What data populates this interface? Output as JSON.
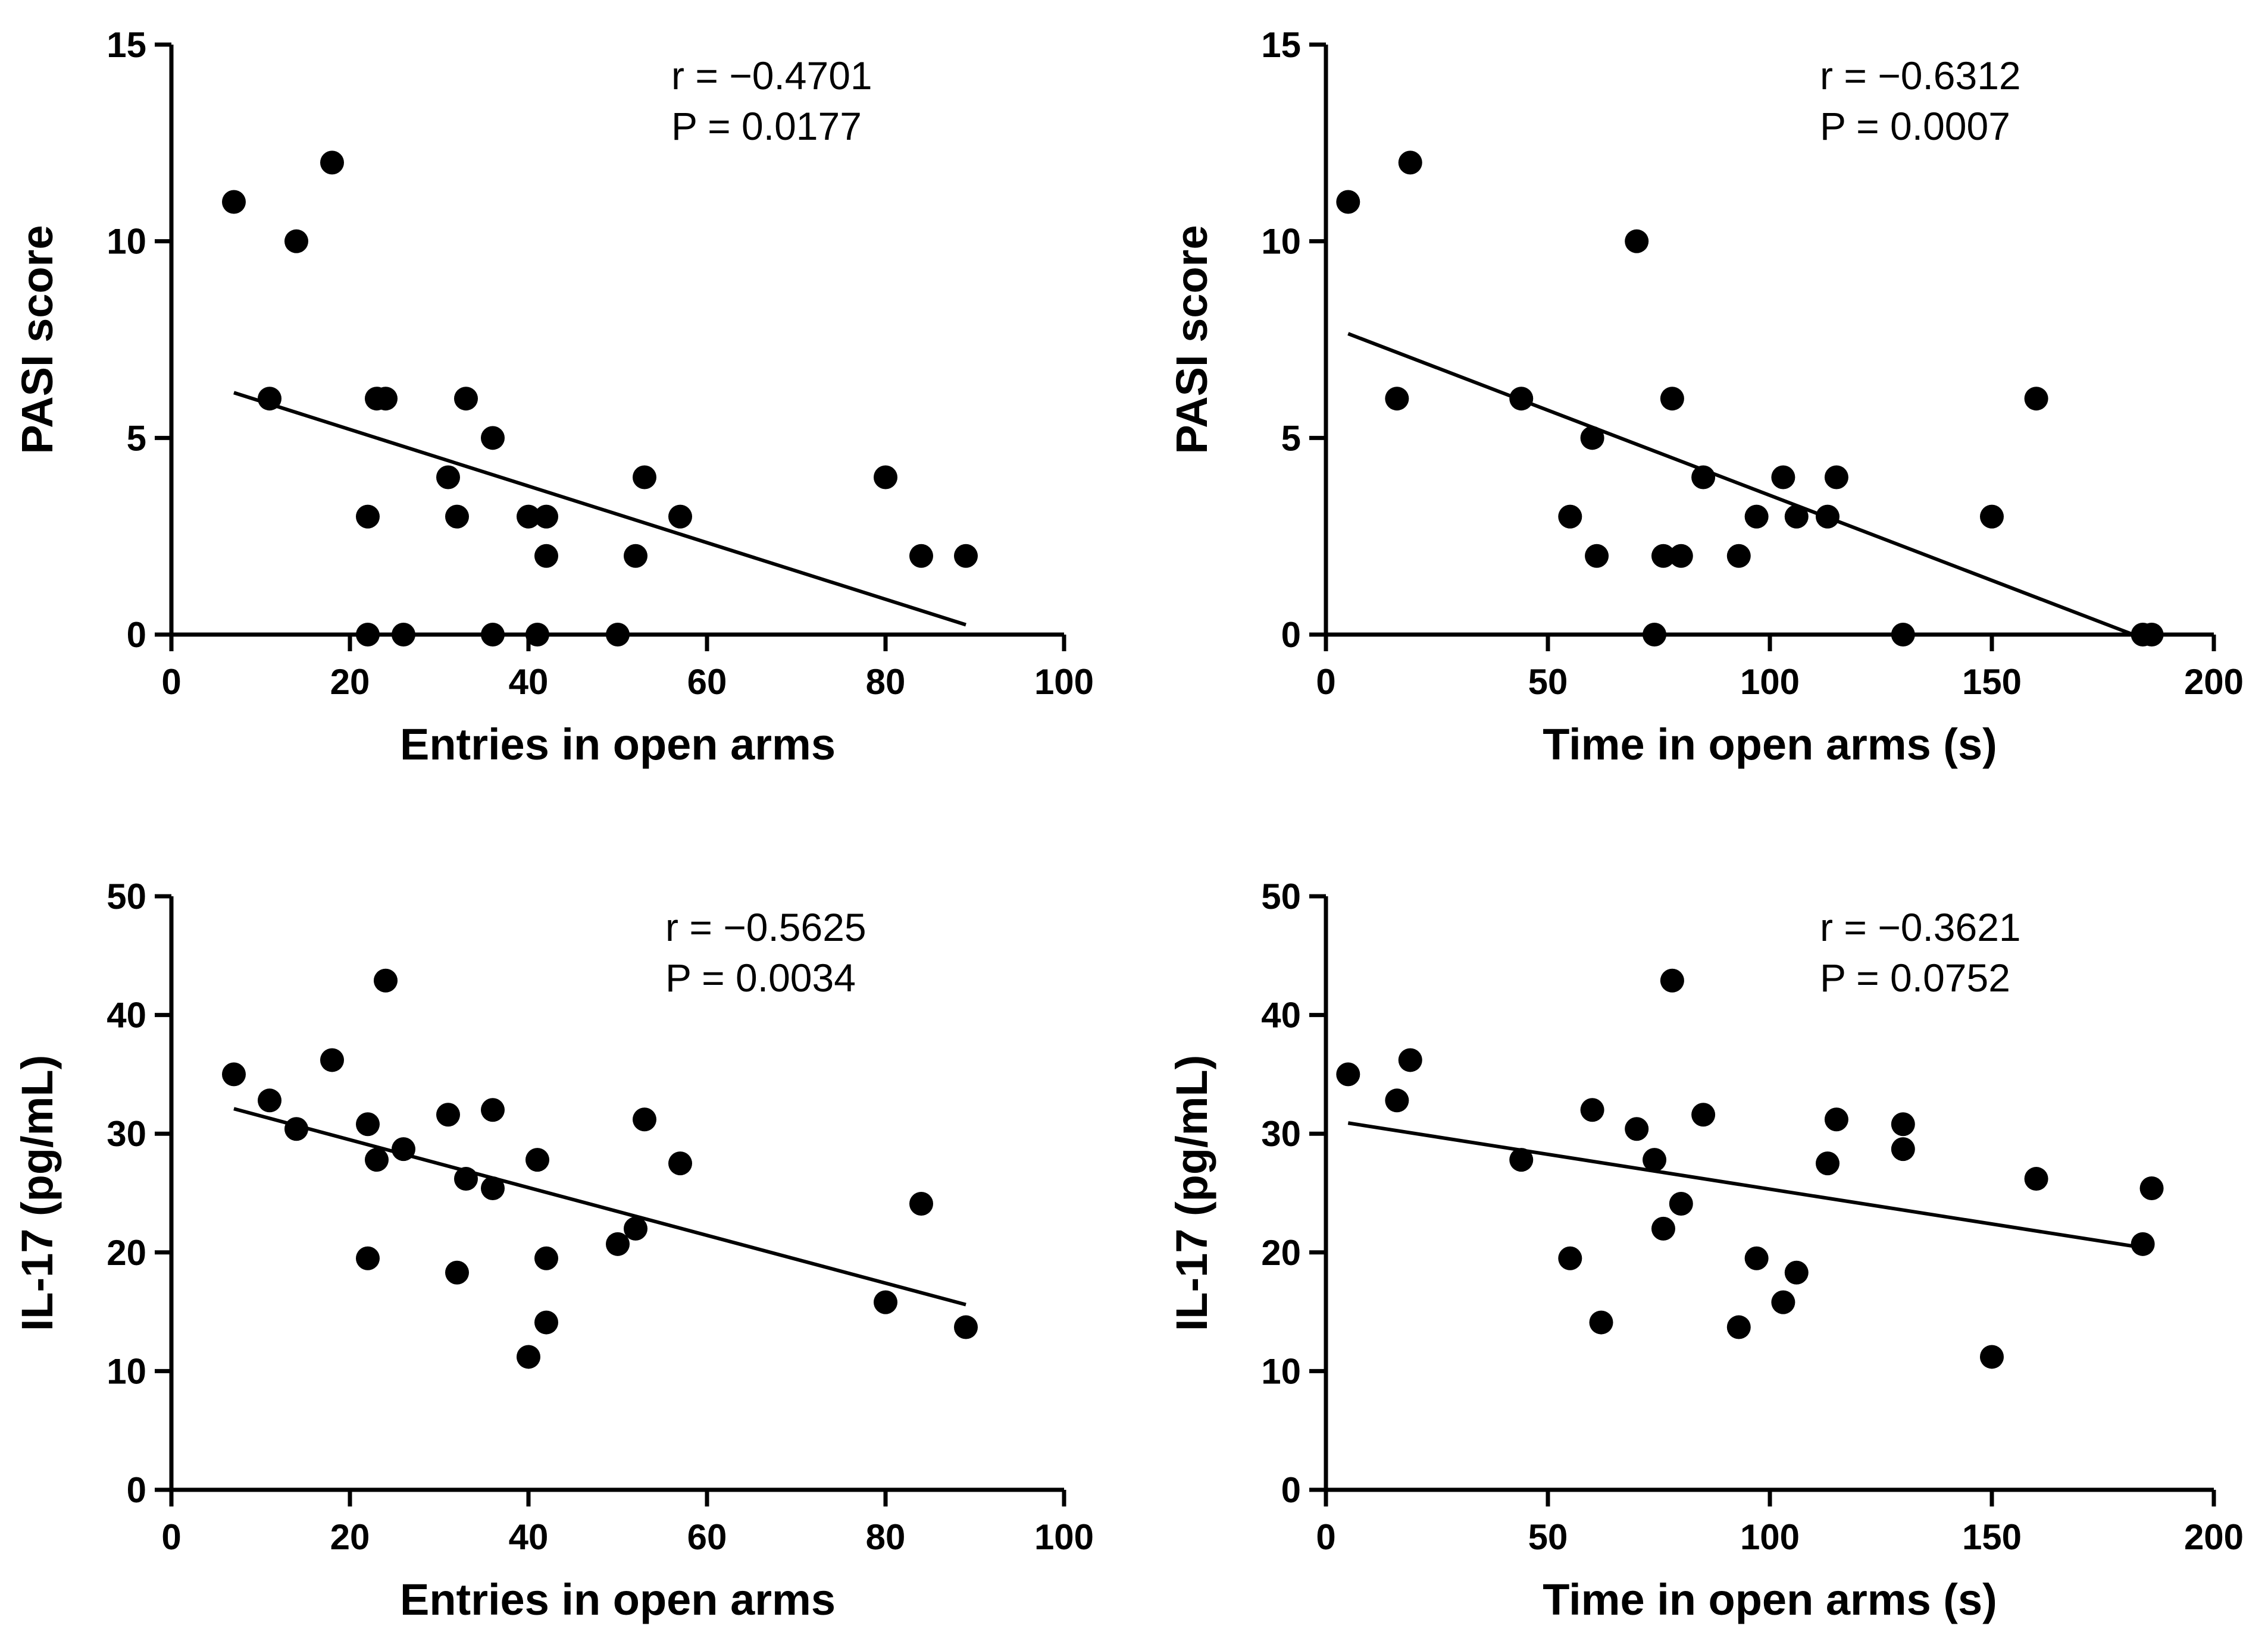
{
  "chart_data": [
    {
      "type": "scatter",
      "panel": "top-left",
      "xlabel": "Entries in open arms",
      "ylabel": "PASI score",
      "xlim": [
        0,
        100
      ],
      "ylim": [
        0,
        15
      ],
      "xticks": [
        0,
        20,
        40,
        60,
        80,
        100
      ],
      "yticks": [
        0,
        5,
        10,
        15
      ],
      "annotations": {
        "r": "r = −0.4701",
        "p": "P = 0.0177"
      },
      "points": [
        [
          7,
          11
        ],
        [
          11,
          6
        ],
        [
          14,
          10
        ],
        [
          18,
          12
        ],
        [
          22,
          3
        ],
        [
          22,
          0
        ],
        [
          23,
          6
        ],
        [
          24,
          6
        ],
        [
          26,
          0
        ],
        [
          31,
          4
        ],
        [
          32,
          3
        ],
        [
          33,
          6
        ],
        [
          36,
          5
        ],
        [
          36,
          0
        ],
        [
          40,
          3
        ],
        [
          41,
          0
        ],
        [
          42,
          3
        ],
        [
          42,
          2
        ],
        [
          50,
          0
        ],
        [
          52,
          2
        ],
        [
          53,
          4
        ],
        [
          57,
          3
        ],
        [
          80,
          4
        ],
        [
          84,
          2
        ],
        [
          89,
          2
        ]
      ],
      "fit": [
        [
          7,
          6.15
        ],
        [
          89,
          0.25
        ]
      ]
    },
    {
      "type": "scatter",
      "panel": "top-right",
      "xlabel": "Time in open arms (s)",
      "ylabel": "PASI score",
      "xlim": [
        0,
        200
      ],
      "ylim": [
        0,
        15
      ],
      "xticks": [
        0,
        50,
        100,
        150,
        200
      ],
      "yticks": [
        0,
        5,
        10,
        15
      ],
      "annotations": {
        "r": "r = −0.6312",
        "p": "P = 0.0007"
      },
      "points": [
        [
          5,
          11
        ],
        [
          16,
          6
        ],
        [
          19,
          12
        ],
        [
          44,
          6
        ],
        [
          55,
          3
        ],
        [
          60,
          5
        ],
        [
          61,
          2
        ],
        [
          70,
          10
        ],
        [
          74,
          0
        ],
        [
          76,
          2
        ],
        [
          78,
          6
        ],
        [
          80,
          2
        ],
        [
          85,
          4
        ],
        [
          93,
          2
        ],
        [
          97,
          3
        ],
        [
          103,
          4
        ],
        [
          106,
          3
        ],
        [
          113,
          3
        ],
        [
          115,
          4
        ],
        [
          130,
          0
        ],
        [
          150,
          3
        ],
        [
          160,
          6
        ],
        [
          184,
          0
        ],
        [
          186,
          0
        ]
      ],
      "fit": [
        [
          5,
          7.65
        ],
        [
          183,
          -0.05
        ]
      ]
    },
    {
      "type": "scatter",
      "panel": "bottom-left",
      "xlabel": "Entries in open arms",
      "ylabel": "IL-17 (pg/mL)",
      "xlim": [
        0,
        100
      ],
      "ylim": [
        0,
        50
      ],
      "xticks": [
        0,
        20,
        40,
        60,
        80,
        100
      ],
      "yticks": [
        0,
        10,
        20,
        30,
        40,
        50
      ],
      "annotations": {
        "r": "r = −0.5625",
        "p": "P = 0.0034"
      },
      "points": [
        [
          7,
          35
        ],
        [
          11,
          32.8
        ],
        [
          14,
          30.4
        ],
        [
          18,
          36.2
        ],
        [
          22,
          30.8
        ],
        [
          22,
          19.5
        ],
        [
          23,
          27.8
        ],
        [
          24,
          42.9
        ],
        [
          26,
          28.7
        ],
        [
          31,
          31.6
        ],
        [
          32,
          18.3
        ],
        [
          33,
          26.2
        ],
        [
          36,
          32
        ],
        [
          36,
          25.4
        ],
        [
          40,
          11.2
        ],
        [
          41,
          27.8
        ],
        [
          42,
          19.5
        ],
        [
          42,
          14.1
        ],
        [
          50,
          20.7
        ],
        [
          52,
          22
        ],
        [
          53,
          31.2
        ],
        [
          57,
          27.5
        ],
        [
          80,
          15.8
        ],
        [
          84,
          24.1
        ],
        [
          89,
          13.7
        ]
      ],
      "fit": [
        [
          7,
          32.1
        ],
        [
          89,
          15.6
        ]
      ]
    },
    {
      "type": "scatter",
      "panel": "bottom-right",
      "xlabel": "Time in open arms (s)",
      "ylabel": "IL-17 (pg/mL)",
      "xlim": [
        0,
        200
      ],
      "ylim": [
        0,
        50
      ],
      "xticks": [
        0,
        50,
        100,
        150,
        200
      ],
      "yticks": [
        0,
        10,
        20,
        30,
        40,
        50
      ],
      "annotations": {
        "r": "r = −0.3621",
        "p": "P = 0.0752"
      },
      "points": [
        [
          5,
          35
        ],
        [
          16,
          32.8
        ],
        [
          19,
          36.2
        ],
        [
          44,
          27.8
        ],
        [
          55,
          19.5
        ],
        [
          60,
          32
        ],
        [
          62,
          14.1
        ],
        [
          70,
          30.4
        ],
        [
          74,
          27.8
        ],
        [
          76,
          22
        ],
        [
          78,
          42.9
        ],
        [
          80,
          24.1
        ],
        [
          85,
          31.6
        ],
        [
          93,
          13.7
        ],
        [
          97,
          19.5
        ],
        [
          103,
          15.8
        ],
        [
          106,
          18.3
        ],
        [
          113,
          27.5
        ],
        [
          115,
          31.2
        ],
        [
          130,
          30.8
        ],
        [
          130,
          28.7
        ],
        [
          150,
          11.2
        ],
        [
          160,
          26.2
        ],
        [
          184,
          20.7
        ],
        [
          186,
          25.4
        ]
      ],
      "fit": [
        [
          5,
          30.9
        ],
        [
          184,
          20.4
        ]
      ]
    }
  ],
  "colors": {
    "ink": "#000000",
    "background": "#ffffff"
  }
}
